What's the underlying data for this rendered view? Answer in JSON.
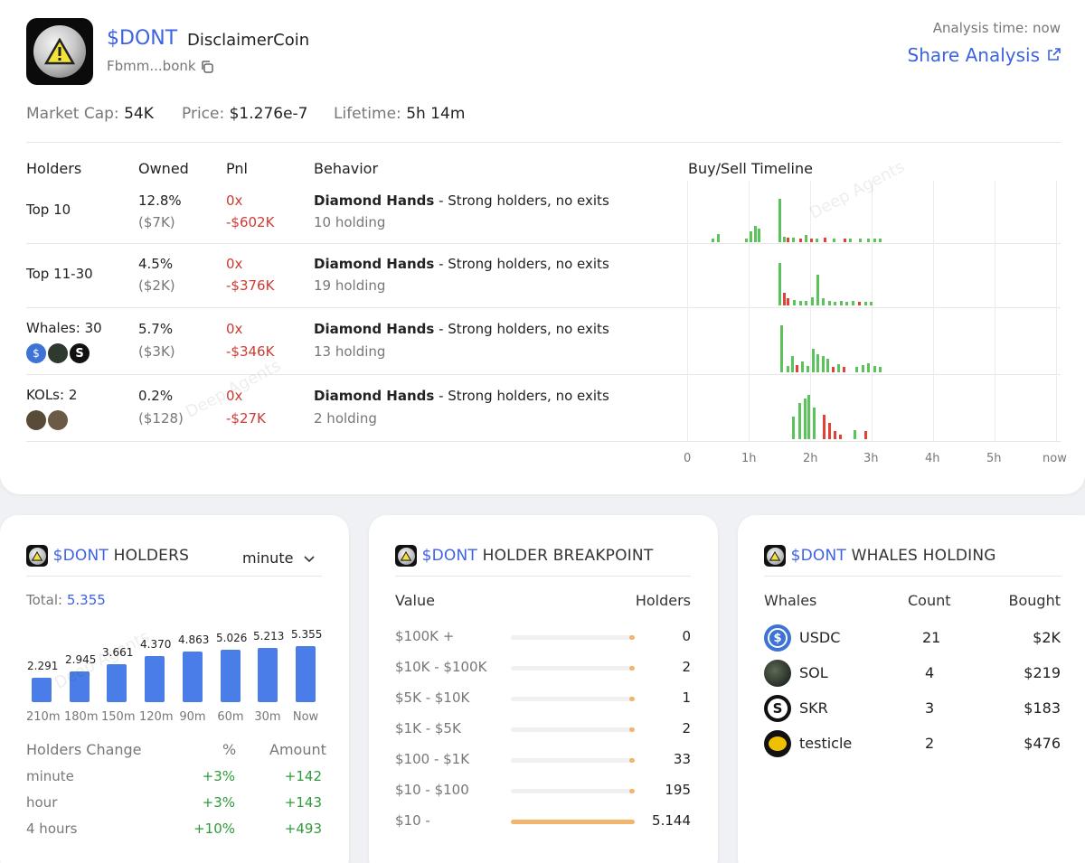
{
  "token": {
    "symbol": "$DONT",
    "name": "DisclaimerCoin",
    "address": "Fbmm...bonk",
    "analysis_time": "Analysis time: now",
    "share_label": "Share Analysis",
    "stats": [
      {
        "label": "Market Cap:",
        "value": "54K"
      },
      {
        "label": "Price:",
        "value": "$1.276e-7"
      },
      {
        "label": "Lifetime:",
        "value": "5h 14m"
      }
    ]
  },
  "holders_table": {
    "headers": {
      "holders": "Holders",
      "owned": "Owned",
      "pnl": "Pnl",
      "behavior": "Behavior",
      "timeline": "Buy/Sell Timeline"
    },
    "rows": [
      {
        "label": "Top 10",
        "owned_pct": "12.8%",
        "owned_usd": "($7K)",
        "pnl_x": "0x",
        "pnl_usd": "-$602K",
        "behavior_title": "Diamond Hands",
        "behavior_desc": " - Strong holders, no exits",
        "holding": "10 holding"
      },
      {
        "label": "Top 11-30",
        "owned_pct": "4.5%",
        "owned_usd": "($2K)",
        "pnl_x": "0x",
        "pnl_usd": "-$376K",
        "behavior_title": "Diamond Hands",
        "behavior_desc": " - Strong holders, no exits",
        "holding": "19 holding"
      },
      {
        "label": "Whales: 30",
        "owned_pct": "5.7%",
        "owned_usd": "($3K)",
        "pnl_x": "0x",
        "pnl_usd": "-$346K",
        "behavior_title": "Diamond Hands",
        "behavior_desc": " - Strong holders, no exits",
        "holding": "13 holding"
      },
      {
        "label": "KOLs: 2",
        "owned_pct": "0.2%",
        "owned_usd": "($128)",
        "pnl_x": "0x",
        "pnl_usd": "-$27K",
        "behavior_title": "Diamond Hands",
        "behavior_desc": " - Strong holders, no exits",
        "holding": "2 holding"
      }
    ],
    "timeline_axis": [
      "0",
      "1h",
      "2h",
      "3h",
      "4h",
      "5h",
      "now"
    ]
  },
  "holders_panel": {
    "symbol": "$DONT",
    "title": "HOLDERS",
    "interval": "minute",
    "total_label": "Total:",
    "total_value": "5.355",
    "bars": [
      {
        "label": "210m",
        "value": 2.291,
        "text": "2.291"
      },
      {
        "label": "180m",
        "value": 2.945,
        "text": "2.945"
      },
      {
        "label": "150m",
        "value": 3.661,
        "text": "3.661"
      },
      {
        "label": "120m",
        "value": 4.37,
        "text": "4.370"
      },
      {
        "label": "90m",
        "value": 4.863,
        "text": "4.863"
      },
      {
        "label": "60m",
        "value": 5.026,
        "text": "5.026"
      },
      {
        "label": "30m",
        "value": 5.213,
        "text": "5.213"
      },
      {
        "label": "Now",
        "value": 5.355,
        "text": "5.355"
      }
    ],
    "change_headers": {
      "label": "Holders Change",
      "pct": "%",
      "amount": "Amount"
    },
    "changes": [
      {
        "period": "minute",
        "pct": "+3%",
        "amount": "+142"
      },
      {
        "period": "hour",
        "pct": "+3%",
        "amount": "+143"
      },
      {
        "period": "4 hours",
        "pct": "+10%",
        "amount": "+493"
      }
    ]
  },
  "breakpoint_panel": {
    "symbol": "$DONT",
    "title": "HOLDER BREAKPOINT",
    "headers": {
      "value": "Value",
      "holders": "Holders"
    },
    "rows": [
      {
        "range": "$100K +",
        "count": "0",
        "fraction": 0.0
      },
      {
        "range": "$10K - $100K",
        "count": "2",
        "fraction": 0.004
      },
      {
        "range": "$5K - $10K",
        "count": "1",
        "fraction": 0.002
      },
      {
        "range": "$1K - $5K",
        "count": "2",
        "fraction": 0.004
      },
      {
        "range": "$100 - $1K",
        "count": "33",
        "fraction": 0.006
      },
      {
        "range": "$10 - $100",
        "count": "195",
        "fraction": 0.038
      },
      {
        "range": "$10 -",
        "count": "5.144",
        "fraction": 1.0
      }
    ]
  },
  "whales_panel": {
    "symbol": "$DONT",
    "title": "WHALES HOLDING",
    "headers": {
      "whales": "Whales",
      "count": "Count",
      "bought": "Bought"
    },
    "rows": [
      {
        "name": "USDC",
        "count": "21",
        "bought": "$2K",
        "icon": "usdc-icon"
      },
      {
        "name": "SOL",
        "count": "4",
        "bought": "$219",
        "icon": "sol-icon"
      },
      {
        "name": "SKR",
        "count": "3",
        "bought": "$183",
        "icon": "skr-icon"
      },
      {
        "name": "testicle",
        "count": "2",
        "bought": "$476",
        "icon": "testicle-icon"
      }
    ]
  },
  "watermark": "Deep Agents",
  "colors": {
    "accent": "#3d63e0",
    "buy": "#5cc25c",
    "sell": "#e0423a",
    "bar": "#4a7de7",
    "breakpoint": "#f3b56d"
  }
}
